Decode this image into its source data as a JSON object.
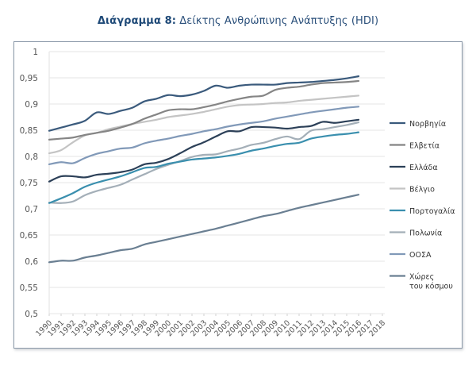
{
  "title": {
    "bold": "Διάγραμμα 8:",
    "rest": " Δείκτης Ανθρώπινης Ανάπτυξης (HDI)"
  },
  "chart_data": {
    "type": "line",
    "title": "Διάγραμμα 8: Δείκτης Ανθρώπινης Ανάπτυξης (HDI)",
    "xlabel": "",
    "ylabel": "",
    "ylim": [
      0.5,
      1.0
    ],
    "yticks": [
      "0,5",
      "0,55",
      "0,6",
      "0,65",
      "0,7",
      "0,75",
      "0,8",
      "0,85",
      "0,9",
      "0,95",
      "1"
    ],
    "ytick_values": [
      0.5,
      0.55,
      0.6,
      0.65,
      0.7,
      0.75,
      0.8,
      0.85,
      0.9,
      0.95,
      1.0
    ],
    "xticks": [
      "1990",
      "1991",
      "1992",
      "1993",
      "1994",
      "1995",
      "1996",
      "1997",
      "1998",
      "1999",
      "2000",
      "2001",
      "2002",
      "2003",
      "2004",
      "2005",
      "2006",
      "2007",
      "2008",
      "2009",
      "2010",
      "2011",
      "2012",
      "2013",
      "2014",
      "2015",
      "2016",
      "2017",
      "2018"
    ],
    "grid": "horizontal",
    "legend_position": "right",
    "x": [
      1990,
      1991,
      1992,
      1993,
      1994,
      1995,
      1996,
      1997,
      1998,
      1999,
      2000,
      2001,
      2002,
      2003,
      2004,
      2005,
      2006,
      2007,
      2008,
      2009,
      2010,
      2011,
      2012,
      2013,
      2014,
      2015,
      2016
    ],
    "series": [
      {
        "name": "Νορβηγία",
        "color": "#3a5a7c",
        "values": [
          0.849,
          0.855,
          0.861,
          0.868,
          0.884,
          0.881,
          0.887,
          0.893,
          0.905,
          0.91,
          0.917,
          0.915,
          0.918,
          0.925,
          0.935,
          0.931,
          0.935,
          0.937,
          0.937,
          0.937,
          0.94,
          0.941,
          0.942,
          0.944,
          0.946,
          0.949,
          0.953
        ]
      },
      {
        "name": "Ελβετία",
        "color": "#858585",
        "values": [
          0.832,
          0.834,
          0.836,
          0.841,
          0.845,
          0.849,
          0.855,
          0.862,
          0.872,
          0.88,
          0.888,
          0.89,
          0.89,
          0.894,
          0.899,
          0.905,
          0.91,
          0.914,
          0.916,
          0.927,
          0.931,
          0.933,
          0.937,
          0.94,
          0.941,
          0.942,
          0.944
        ]
      },
      {
        "name": "Ελλάδα",
        "color": "#2c4058",
        "values": [
          0.752,
          0.762,
          0.762,
          0.76,
          0.765,
          0.767,
          0.77,
          0.775,
          0.785,
          0.788,
          0.795,
          0.806,
          0.818,
          0.827,
          0.838,
          0.848,
          0.848,
          0.856,
          0.856,
          0.855,
          0.853,
          0.856,
          0.858,
          0.866,
          0.864,
          0.867,
          0.87
        ]
      },
      {
        "name": "Βέλγιο",
        "color": "#c4c4c4",
        "values": [
          0.806,
          0.812,
          0.827,
          0.84,
          0.845,
          0.852,
          0.857,
          0.862,
          0.866,
          0.87,
          0.875,
          0.878,
          0.881,
          0.885,
          0.89,
          0.895,
          0.898,
          0.899,
          0.9,
          0.902,
          0.903,
          0.906,
          0.908,
          0.91,
          0.912,
          0.914,
          0.916
        ]
      },
      {
        "name": "Πορτογαλία",
        "color": "#3a8fae",
        "values": [
          0.711,
          0.72,
          0.73,
          0.742,
          0.75,
          0.756,
          0.762,
          0.77,
          0.778,
          0.78,
          0.786,
          0.79,
          0.794,
          0.796,
          0.798,
          0.801,
          0.805,
          0.811,
          0.815,
          0.82,
          0.824,
          0.826,
          0.834,
          0.838,
          0.841,
          0.843,
          0.846
        ]
      },
      {
        "name": "Πολωνία",
        "color": "#a4afb8",
        "values": [
          0.712,
          0.711,
          0.714,
          0.726,
          0.734,
          0.74,
          0.746,
          0.756,
          0.766,
          0.776,
          0.784,
          0.791,
          0.799,
          0.803,
          0.804,
          0.81,
          0.815,
          0.822,
          0.826,
          0.833,
          0.838,
          0.833,
          0.849,
          0.852,
          0.856,
          0.86,
          0.865
        ]
      },
      {
        "name": "ΟΟΣΑ",
        "color": "#8199b8",
        "values": [
          0.785,
          0.789,
          0.787,
          0.797,
          0.805,
          0.81,
          0.815,
          0.817,
          0.825,
          0.83,
          0.834,
          0.839,
          0.843,
          0.848,
          0.852,
          0.857,
          0.861,
          0.864,
          0.867,
          0.872,
          0.876,
          0.88,
          0.884,
          0.887,
          0.89,
          0.893,
          0.895
        ]
      },
      {
        "name": "Χώρες του κόσμου",
        "color": "#6a7f92",
        "values": [
          0.598,
          0.601,
          0.601,
          0.607,
          0.611,
          0.616,
          0.621,
          0.624,
          0.632,
          0.637,
          0.642,
          0.647,
          0.652,
          0.657,
          0.662,
          0.668,
          0.674,
          0.68,
          0.686,
          0.69,
          0.696,
          0.702,
          0.707,
          0.712,
          0.717,
          0.722,
          0.727
        ]
      }
    ],
    "legend_labels": [
      [
        "Νορβηγία"
      ],
      [
        "Ελβετία"
      ],
      [
        "Ελλάδα"
      ],
      [
        "Βέλγιο"
      ],
      [
        "Πορτογαλία"
      ],
      [
        "Πολωνία"
      ],
      [
        "ΟΟΣΑ"
      ],
      [
        "Χώρες",
        "του κόσμου"
      ]
    ]
  }
}
